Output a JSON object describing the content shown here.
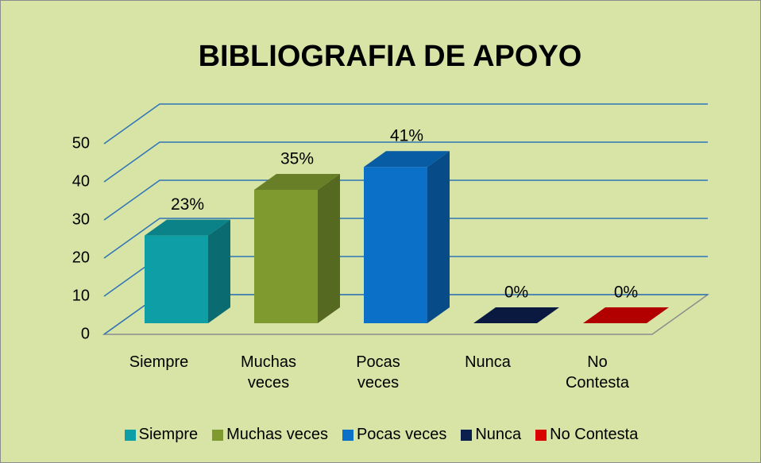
{
  "chart_data": {
    "type": "bar3d",
    "title": "BIBLIOGRAFIA DE APOYO",
    "categories": [
      "Siempre",
      "Muchas veces",
      "Pocas veces",
      "Nunca",
      "No Contesta"
    ],
    "values": [
      23,
      35,
      41,
      0,
      0
    ],
    "value_labels": [
      "23%",
      "35%",
      "41%",
      "0%",
      "0%"
    ],
    "colors": [
      "#0e9ea5",
      "#7f9a2f",
      "#0a70c8",
      "#0b1f4e",
      "#d90000"
    ],
    "ylim": [
      0,
      50
    ],
    "yticks": [
      0,
      10,
      20,
      30,
      40,
      50
    ],
    "grid": true,
    "legend": "bottom"
  }
}
